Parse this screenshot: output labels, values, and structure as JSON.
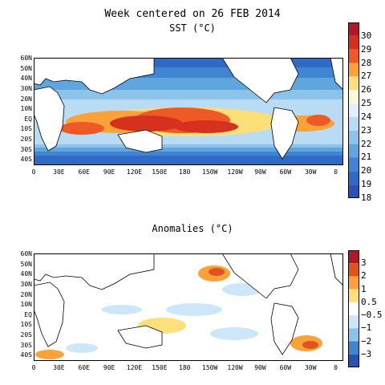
{
  "titles": {
    "main_line1": "Week centered on 26 FEB 2014",
    "main_line2": "SST (°C)",
    "anomalies": "Anomalies (°C)"
  },
  "lat_labels": [
    "60N",
    "50N",
    "40N",
    "30N",
    "20N",
    "10N",
    "EQ",
    "10S",
    "20S",
    "30S",
    "40S"
  ],
  "lon_labels": [
    "0",
    "30E",
    "60E",
    "90E",
    "120E",
    "150E",
    "180",
    "150W",
    "120W",
    "90W",
    "60W",
    "30W",
    "0"
  ],
  "sst_scale": {
    "labels": [
      "30",
      "29",
      "28",
      "27",
      "26",
      "25",
      "24",
      "23",
      "22",
      "21",
      "20",
      "19",
      "18"
    ],
    "colors": [
      "#b2182b",
      "#d6301f",
      "#ee5a24",
      "#f9a23a",
      "#fbe07a",
      "#fdf8d8",
      "#e2f0fb",
      "#b9dcf4",
      "#8cc3ea",
      "#5fa5de",
      "#3f85d2",
      "#2f6ac4",
      "#2a52b5"
    ]
  },
  "anom_scale": {
    "labels": [
      "3",
      "2",
      "1",
      "0.5",
      "−0.5",
      "−1",
      "−2",
      "−3"
    ],
    "colors": [
      "#b2182b",
      "#e0531f",
      "#f9a23a",
      "#fde07a",
      "#ffffff",
      "#cde6f8",
      "#8cc3ea",
      "#3f85d2",
      "#2a52b5"
    ]
  },
  "colors": {
    "land": "#ffffff",
    "coast": "#000000"
  }
}
